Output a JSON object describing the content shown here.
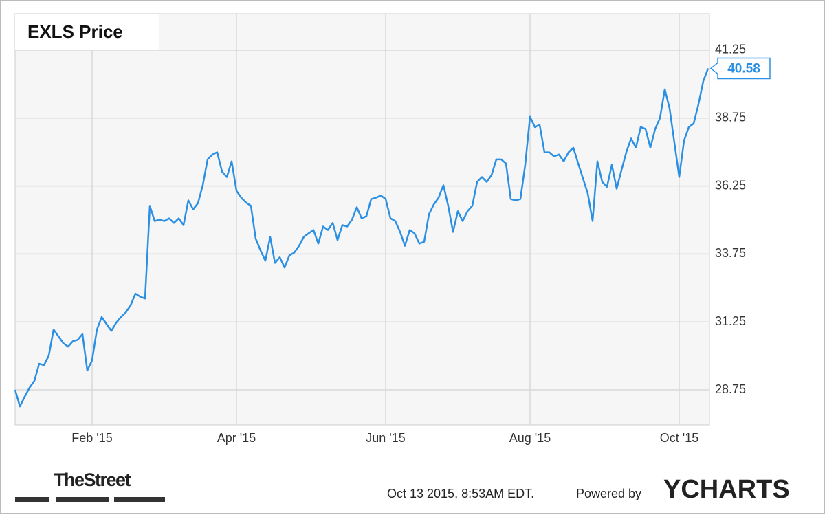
{
  "chart_data": {
    "type": "line",
    "title": "EXLS Price",
    "color": "#2b8fe3",
    "grid": true,
    "ylim": [
      27.46,
      42.59
    ],
    "yticks": [
      28.75,
      31.25,
      33.75,
      36.25,
      38.75,
      41.25
    ],
    "categories": [
      null,
      null,
      null,
      null,
      null,
      null,
      null,
      null,
      null,
      null,
      null,
      null,
      null,
      null,
      null,
      null,
      "Feb '15",
      null,
      null,
      null,
      null,
      null,
      null,
      null,
      null,
      null,
      null,
      null,
      null,
      null,
      null,
      null,
      null,
      null,
      null,
      null,
      null,
      null,
      null,
      null,
      null,
      null,
      null,
      null,
      null,
      null,
      "Apr '15",
      null,
      null,
      null,
      null,
      null,
      null,
      null,
      null,
      null,
      null,
      null,
      null,
      null,
      null,
      null,
      null,
      null,
      null,
      null,
      null,
      null,
      null,
      null,
      null,
      null,
      null,
      null,
      null,
      null,
      null,
      "Jun '15",
      null,
      null,
      null,
      null,
      null,
      null,
      null,
      null,
      null,
      null,
      null,
      null,
      null,
      null,
      null,
      null,
      null,
      null,
      null,
      null,
      null,
      null,
      null,
      null,
      null,
      null,
      null,
      null,
      null,
      "Aug '15",
      null,
      null,
      null,
      null,
      null,
      null,
      null,
      null,
      null,
      null,
      null,
      null,
      null,
      null,
      null,
      null,
      null,
      null,
      null,
      null,
      null,
      null,
      null,
      null,
      null,
      null,
      null,
      null,
      null,
      null,
      "Oct '15",
      null,
      null,
      null,
      null,
      null,
      null
    ],
    "values": [
      28.75,
      28.14,
      28.5,
      28.83,
      29.08,
      29.71,
      29.66,
      30.01,
      30.97,
      30.72,
      30.47,
      30.34,
      30.54,
      30.59,
      30.8,
      29.46,
      29.84,
      30.97,
      31.43,
      31.17,
      30.92,
      31.22,
      31.43,
      31.6,
      31.86,
      32.29,
      32.18,
      32.11,
      35.52,
      34.96,
      35.01,
      34.96,
      35.06,
      34.89,
      35.06,
      34.81,
      35.72,
      35.39,
      35.62,
      36.28,
      37.23,
      37.41,
      37.49,
      36.78,
      36.58,
      37.16,
      36.07,
      35.82,
      35.64,
      35.52,
      34.31,
      33.88,
      33.5,
      34.38,
      33.42,
      33.63,
      33.25,
      33.7,
      33.8,
      34.05,
      34.38,
      34.51,
      34.63,
      34.13,
      34.76,
      34.63,
      34.89,
      34.26,
      34.81,
      34.76,
      35.01,
      35.47,
      35.06,
      35.14,
      35.77,
      35.82,
      35.9,
      35.77,
      35.06,
      34.96,
      34.56,
      34.05,
      34.63,
      34.51,
      34.13,
      34.2,
      35.21,
      35.57,
      35.82,
      36.28,
      35.52,
      34.56,
      35.32,
      34.96,
      35.32,
      35.52,
      36.4,
      36.58,
      36.4,
      36.65,
      37.23,
      37.23,
      37.08,
      35.77,
      35.72,
      35.77,
      37.03,
      38.8,
      38.42,
      38.5,
      37.49,
      37.49,
      37.34,
      37.41,
      37.16,
      37.49,
      37.66,
      37.08,
      36.53,
      35.97,
      34.96,
      37.16,
      36.4,
      36.22,
      37.03,
      36.15,
      36.83,
      37.49,
      38.0,
      37.66,
      38.42,
      38.35,
      37.66,
      38.35,
      38.75,
      39.81,
      39.1,
      37.84,
      36.58,
      37.92,
      38.42,
      38.55,
      39.26,
      40.11,
      40.58
    ],
    "timestamp": "Oct 13 2015, 8:53AM EDT.",
    "powered_by": "Powered by",
    "brand": "YCHARTS",
    "source": "TheStreet"
  }
}
